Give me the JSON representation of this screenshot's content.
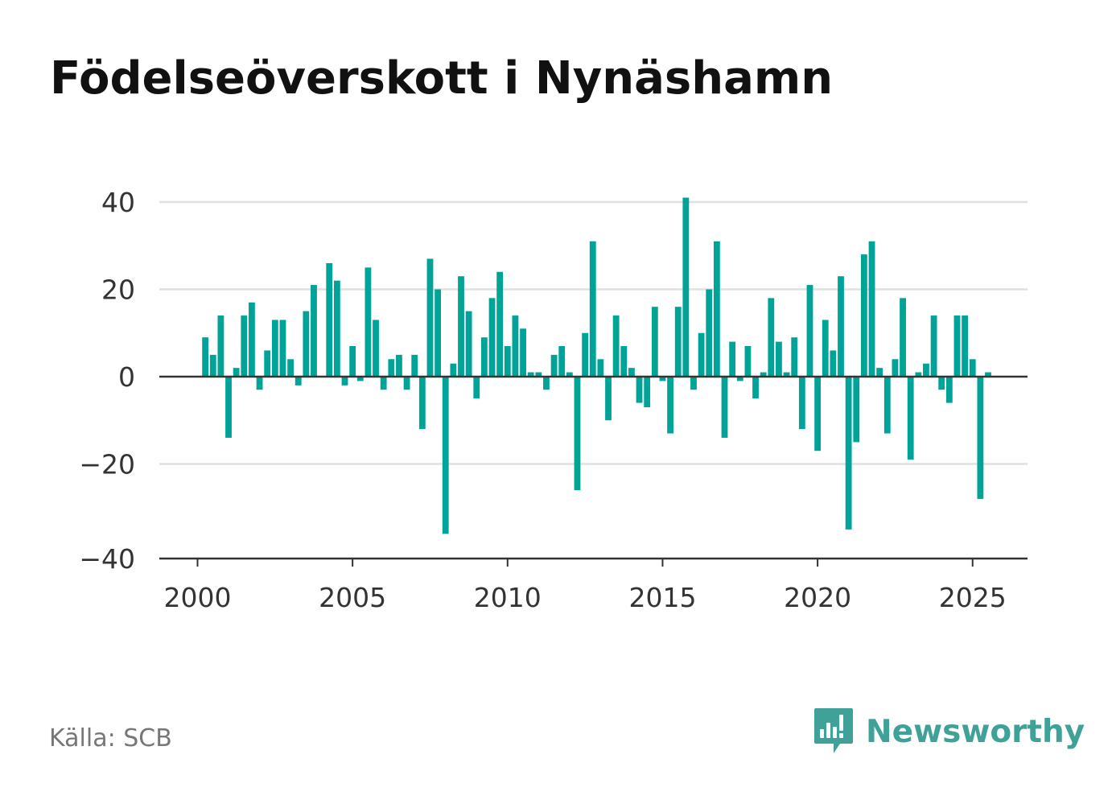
{
  "title": "Födelseöverskott i Nynäshamn",
  "source": "Källa: SCB",
  "brand": {
    "name": "Newsworthy",
    "logo_icon": "newsworthy-chat-bars-icon"
  },
  "colors": {
    "bar": "#00a398",
    "grid": "#e0e0e0",
    "zero_line": "#333333",
    "axis": "#333333",
    "brand": "#3fa197"
  },
  "chart_data": {
    "type": "bar",
    "title": "Födelseöverskott i Nynäshamn",
    "xlabel": "",
    "ylabel": "",
    "ylim": [
      -40,
      40
    ],
    "yticks": [
      "40",
      "20",
      "0",
      "−20",
      "−40"
    ],
    "ytick_values": [
      40,
      20,
      0,
      -20,
      -40
    ],
    "xticks": [
      "2000",
      "2005",
      "2010",
      "2015",
      "2020",
      "2025"
    ],
    "xtick_values": [
      2000,
      2005,
      2010,
      2015,
      2020,
      2025
    ],
    "grid": true,
    "x_start": 2000.25,
    "x_step": 0.25,
    "values": [
      9,
      5,
      14,
      -14,
      2,
      14,
      17,
      -3,
      6,
      13,
      13,
      4,
      -2,
      15,
      21,
      0,
      26,
      22,
      -2,
      7,
      -1,
      25,
      13,
      -3,
      4,
      5,
      -3,
      5,
      -12,
      27,
      20,
      -36,
      3,
      23,
      15,
      -5,
      9,
      18,
      24,
      7,
      14,
      11,
      1,
      1,
      -3,
      5,
      7,
      1,
      -26,
      10,
      31,
      4,
      -10,
      14,
      7,
      2,
      -6,
      -7,
      16,
      -1,
      -13,
      16,
      41,
      -3,
      10,
      20,
      31,
      -14,
      8,
      -1,
      7,
      -5,
      1,
      18,
      8,
      1,
      9,
      -12,
      21,
      -17,
      13,
      6,
      23,
      -35,
      -15,
      28,
      31,
      2,
      -13,
      4,
      18,
      -19,
      1,
      3,
      14,
      -3,
      -6,
      14,
      14,
      4,
      -28,
      1
    ]
  }
}
